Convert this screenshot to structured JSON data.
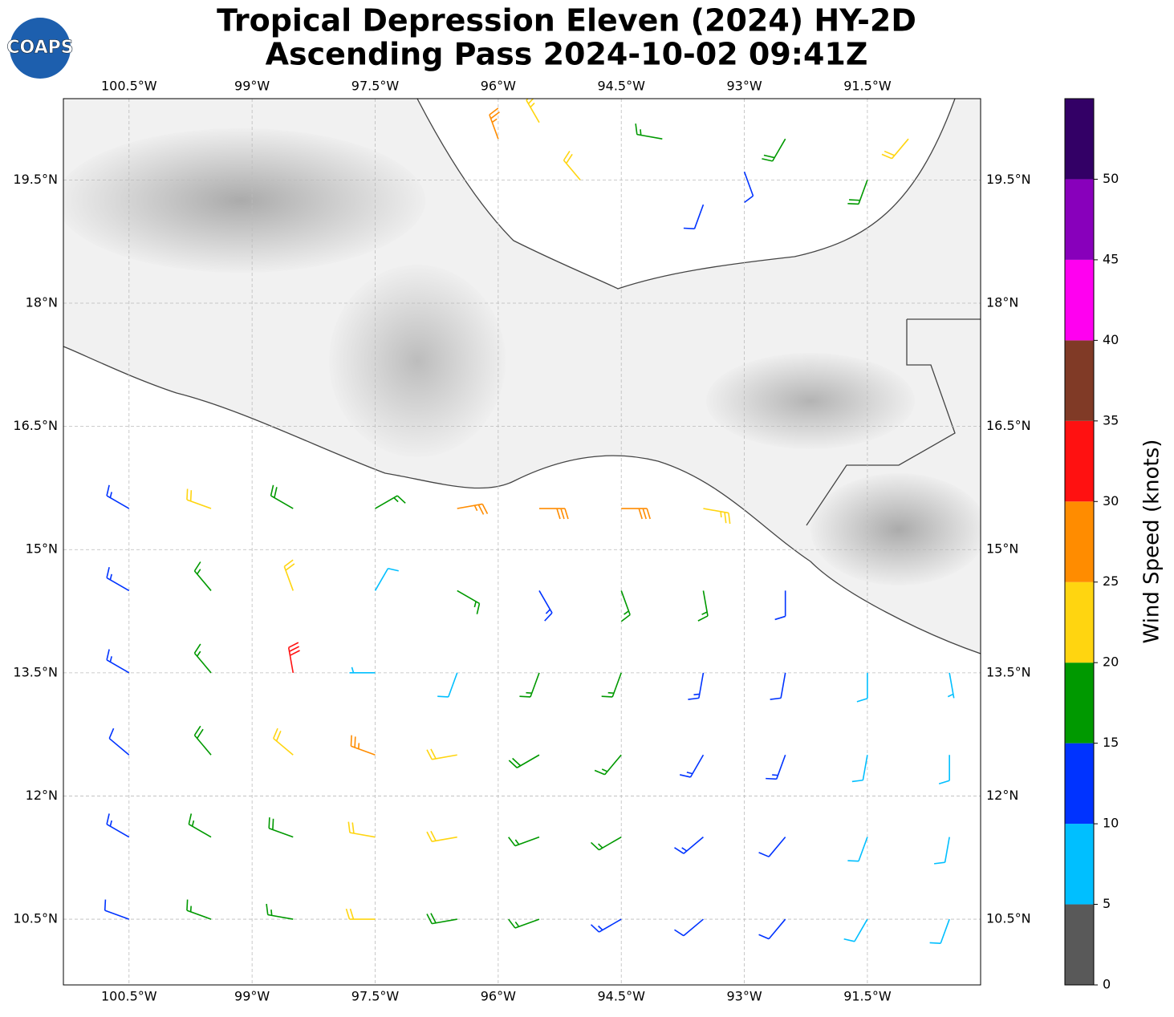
{
  "title": "Tropical Depression Eleven (2024) HY-2D",
  "subtitle": "Ascending Pass 2024-10-02 09:41Z",
  "logo": "COAPS",
  "map": {
    "lonlim": [
      -101.3,
      -90.12
    ],
    "latlim": [
      9.7,
      20.49
    ],
    "xticks": [
      {
        "value": -100.5,
        "label": "100.5°W"
      },
      {
        "value": -99,
        "label": "99°W"
      },
      {
        "value": -97.5,
        "label": "97.5°W"
      },
      {
        "value": -96,
        "label": "96°W"
      },
      {
        "value": -94.5,
        "label": "94.5°W"
      },
      {
        "value": -93,
        "label": "93°W"
      },
      {
        "value": -91.5,
        "label": "91.5°W"
      }
    ],
    "yticks": [
      {
        "value": 10.5,
        "label": "10.5°N"
      },
      {
        "value": 12,
        "label": "12°N"
      },
      {
        "value": 13.5,
        "label": "13.5°N"
      },
      {
        "value": 15,
        "label": "15°N"
      },
      {
        "value": 16.5,
        "label": "16.5°N"
      },
      {
        "value": 18,
        "label": "18°N"
      },
      {
        "value": 19.5,
        "label": "19.5°N"
      }
    ],
    "grid": true
  },
  "barbs": {
    "lon": [
      -100.5,
      -99.5,
      -98.5,
      -97.5,
      -96.5,
      -95.5,
      -94.5,
      -93.5,
      -100.5,
      -99.5,
      -98.5,
      -97.5,
      -96.5,
      -95.5,
      -94.5,
      -93.5,
      -92.5,
      -100.5,
      -99.5,
      -98.5,
      -97.5,
      -96.5,
      -95.5,
      -94.5,
      -93.5,
      -92.5,
      -91.5,
      -90.5,
      -100.5,
      -99.5,
      -98.5,
      -97.5,
      -96.5,
      -95.5,
      -94.5,
      -93.5,
      -92.5,
      -91.5,
      -90.5,
      -100.5,
      -99.5,
      -98.5,
      -97.5,
      -96.5,
      -95.5,
      -94.5,
      -93.5,
      -92.5,
      -91.5,
      -90.5,
      -100.5,
      -99.5,
      -98.5,
      -97.5,
      -96.5,
      -95.5,
      -94.5,
      -93.5,
      -92.5,
      -91.5,
      -90.5,
      -96,
      -95,
      -94,
      -93.5,
      -92.5,
      -91.5,
      -91,
      -95.5,
      -93
    ],
    "lat": [
      15.5,
      15.5,
      15.5,
      15.5,
      15.5,
      15.5,
      15.5,
      15.5,
      14.5,
      14.5,
      14.5,
      14.5,
      14.5,
      14.5,
      14.5,
      14.5,
      14.5,
      13.5,
      13.5,
      13.5,
      13.5,
      13.5,
      13.5,
      13.5,
      13.5,
      13.5,
      13.5,
      13.5,
      12.5,
      12.5,
      12.5,
      12.5,
      12.5,
      12.5,
      12.5,
      12.5,
      12.5,
      12.5,
      12.5,
      11.5,
      11.5,
      11.5,
      11.5,
      11.5,
      11.5,
      11.5,
      11.5,
      11.5,
      11.5,
      11.5,
      10.5,
      10.5,
      10.5,
      10.5,
      10.5,
      10.5,
      10.5,
      10.5,
      10.5,
      10.5,
      10.5,
      20,
      19.5,
      20,
      19.2,
      20,
      19.5,
      20,
      20.2,
      19.6
    ],
    "speed": [
      14,
      22,
      18,
      17,
      25,
      28,
      28,
      24,
      13,
      17,
      22,
      8,
      16,
      13,
      15,
      15,
      12,
      13,
      17,
      30,
      7,
      8,
      15,
      16,
      14,
      12,
      8,
      7,
      12,
      18,
      22,
      27,
      22,
      18,
      17,
      14,
      13,
      9,
      8,
      13,
      16,
      18,
      20,
      22,
      17,
      15,
      13,
      12,
      9,
      8,
      12,
      15,
      17,
      22,
      18,
      15,
      13,
      12,
      11,
      9,
      8,
      27,
      22,
      17,
      12,
      18,
      18,
      21,
      24,
      12
    ],
    "direction": [
      300,
      290,
      300,
      60,
      80,
      90,
      90,
      100,
      300,
      320,
      340,
      30,
      120,
      150,
      160,
      170,
      180,
      300,
      320,
      350,
      270,
      200,
      200,
      200,
      190,
      190,
      180,
      170,
      310,
      320,
      310,
      290,
      260,
      240,
      220,
      210,
      200,
      190,
      180,
      300,
      300,
      290,
      280,
      260,
      250,
      240,
      230,
      220,
      200,
      190,
      290,
      290,
      280,
      270,
      260,
      250,
      240,
      230,
      220,
      210,
      200,
      340,
      320,
      280,
      200,
      210,
      200,
      220,
      330,
      160
    ]
  },
  "colorbar": {
    "label": "Wind Speed (knots)",
    "bins": [
      0,
      5,
      10,
      15,
      20,
      25,
      30,
      35,
      40,
      45,
      50,
      55
    ],
    "colors": [
      "#595959",
      "#00bfff",
      "#0033ff",
      "#009900",
      "#ffd510",
      "#ff8c00",
      "#ff1111",
      "#803a26",
      "#ff00f0",
      "#8800bb",
      "#330066"
    ],
    "ticks": [
      0,
      5,
      10,
      15,
      20,
      25,
      30,
      35,
      40,
      45,
      50
    ]
  }
}
